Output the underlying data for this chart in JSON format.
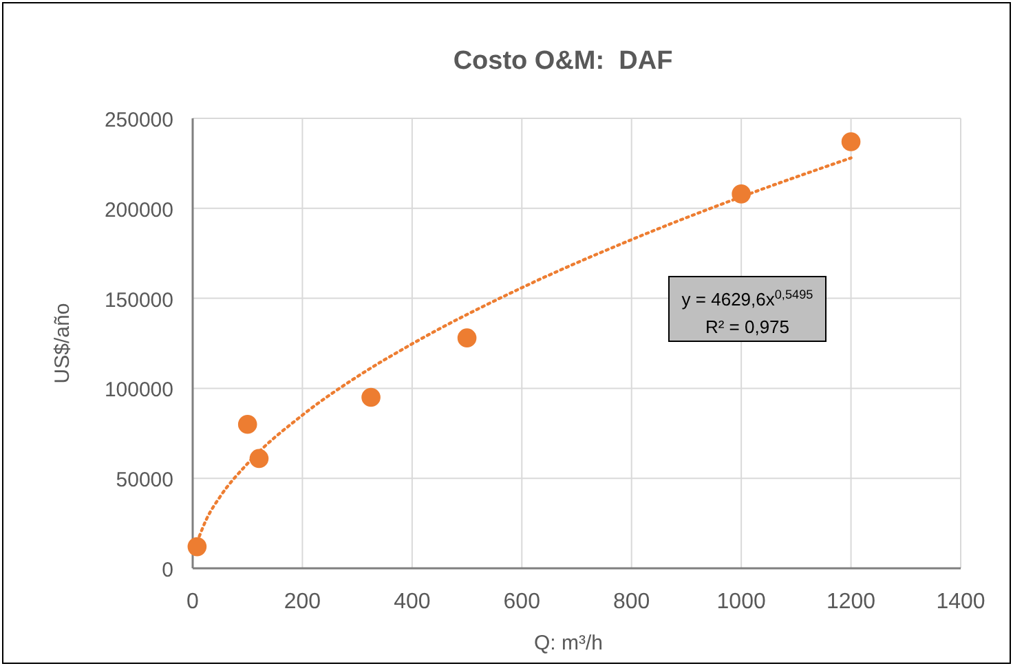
{
  "chart_data": {
    "type": "scatter",
    "title": "Costo O&M:  DAF",
    "xlabel": "Q: m³/h",
    "ylabel": "US$/año",
    "xlim": [
      0,
      1400
    ],
    "xticks": [
      0,
      200,
      400,
      600,
      800,
      1000,
      1200,
      1400
    ],
    "ylim": [
      0,
      250000
    ],
    "yticks": [
      0,
      50000,
      100000,
      150000,
      200000,
      250000
    ],
    "grid": true,
    "marker": "circle",
    "annotations": [
      "y = 4629,6x$^{0,5495}$",
      "R² = 0,975"
    ],
    "series": [
      {
        "color": "#ed7d31",
        "x": [
          8,
          100,
          121,
          325,
          500,
          1000,
          1200
        ],
        "values": [
          12000,
          80000,
          61000,
          95000,
          128000,
          208000,
          237000
        ]
      },
      {
        "type": "line",
        "color": "#ed7d31",
        "line_style": "dotted",
        "marker": "none",
        "x": [
          8,
          25,
          50,
          100,
          200,
          300,
          400,
          600,
          800,
          1000,
          1200
        ],
        "values": [
          14500,
          27200,
          39800,
          58200,
          85100,
          106500,
          124700,
          155900,
          182600,
          206400,
          228000
        ]
      }
    ]
  }
}
